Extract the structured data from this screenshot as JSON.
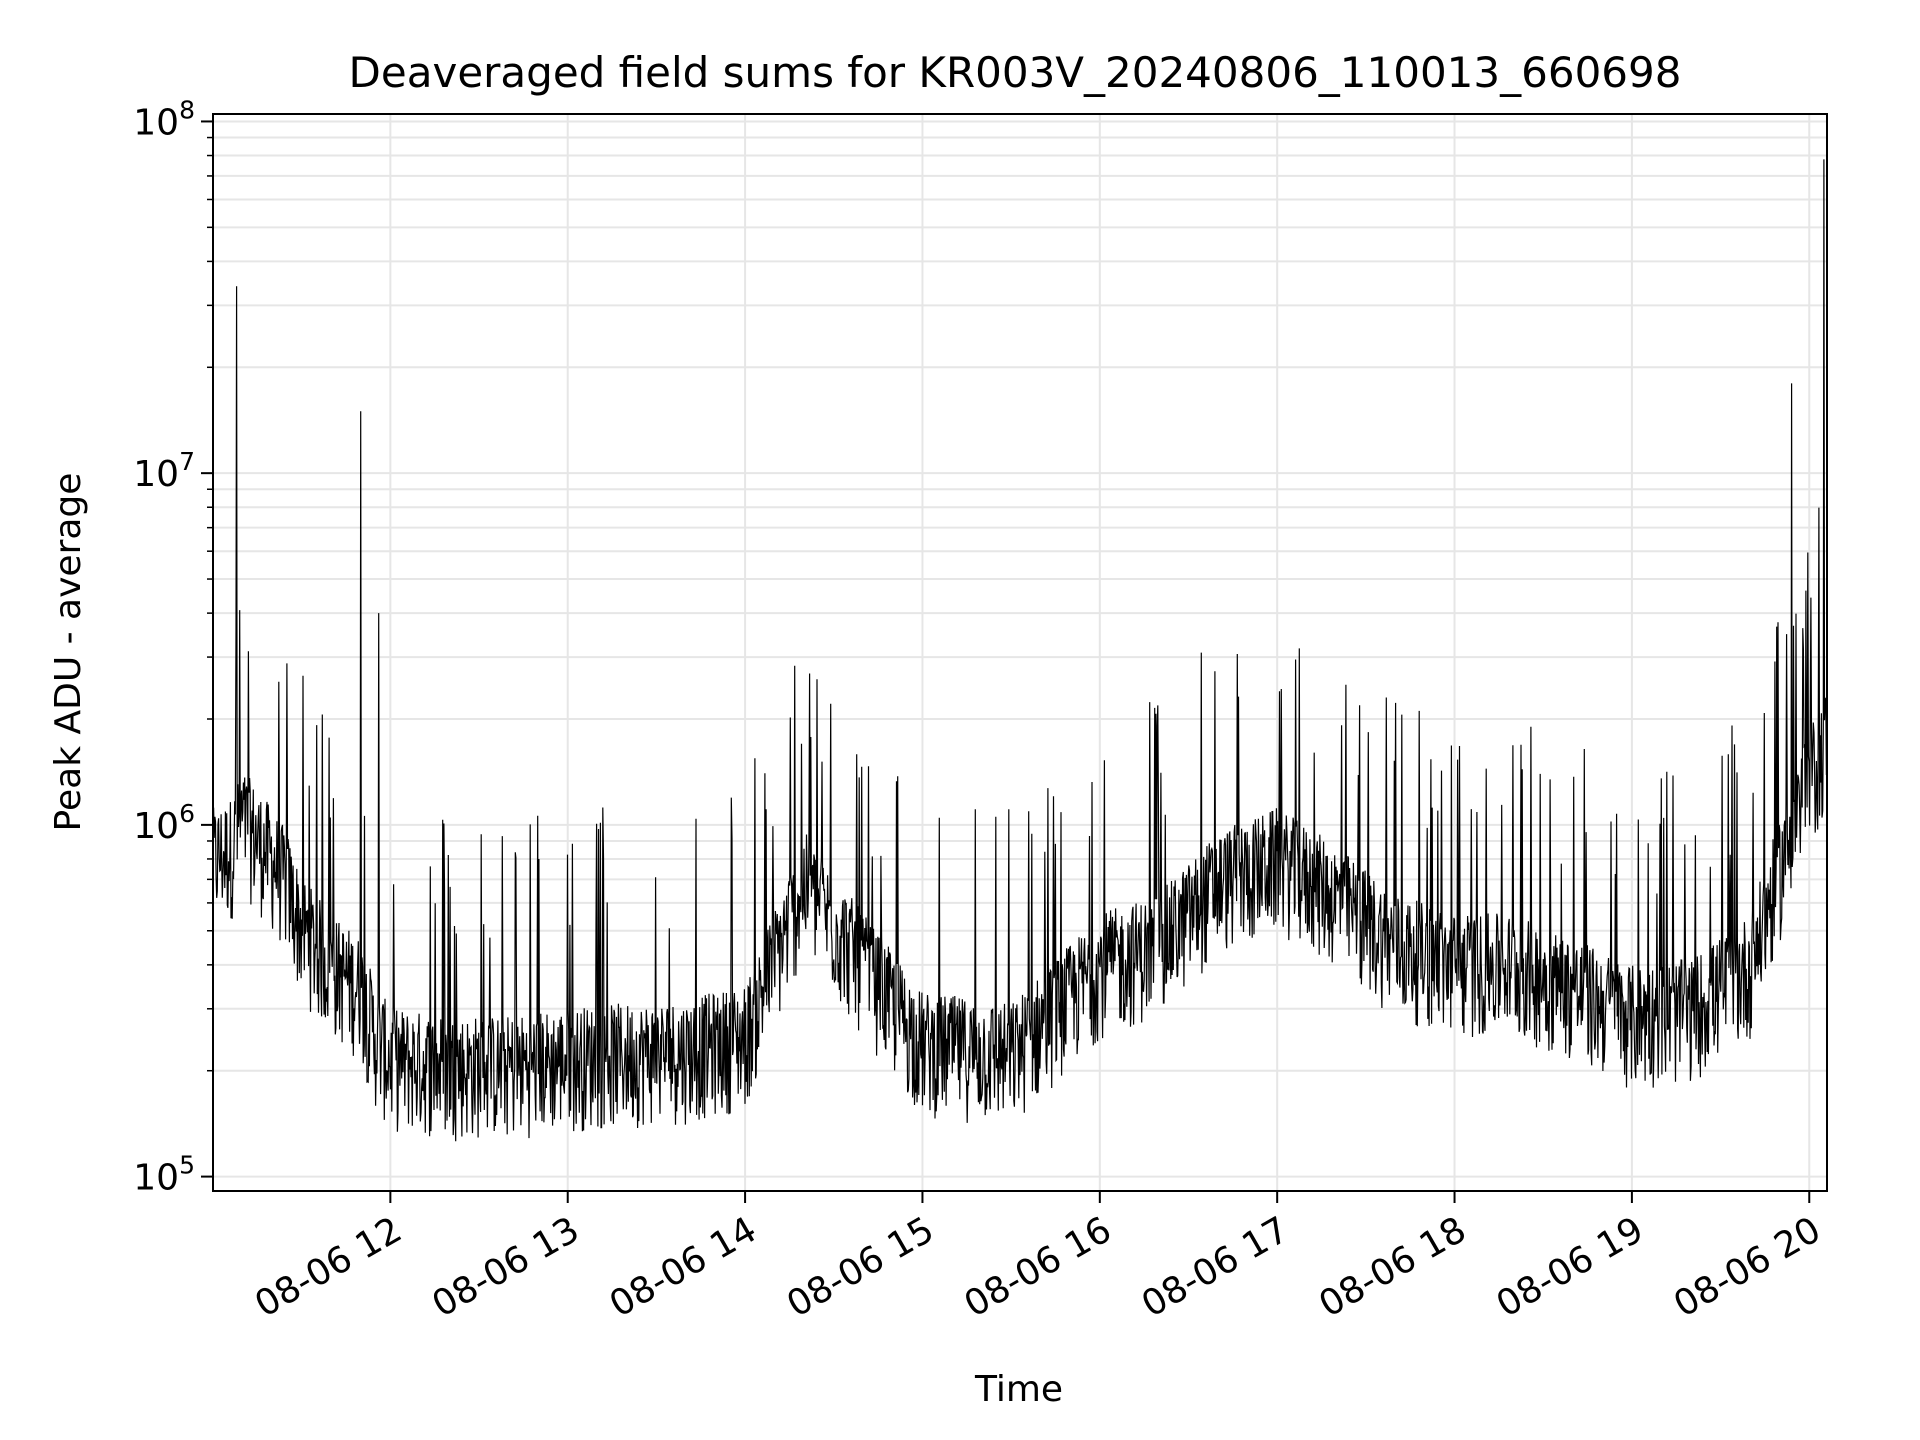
{
  "chart_data": {
    "type": "line",
    "title": "Deaveraged field sums for KR003V_20240806_110013_660698",
    "xlabel": "Time",
    "ylabel": "Peak ADU - average",
    "yscale": "log",
    "ylim": [
      91000,
      105000000
    ],
    "xlim": [
      "08-06 11:00",
      "08-06 20:06"
    ],
    "x_ticks": [
      "08-06 12",
      "08-06 13",
      "08-06 14",
      "08-06 15",
      "08-06 16",
      "08-06 17",
      "08-06 18",
      "08-06 19",
      "08-06 20"
    ],
    "y_ticks": [
      {
        "base": "10",
        "exp": "5",
        "value": 100000
      },
      {
        "base": "10",
        "exp": "6",
        "value": 1000000
      },
      {
        "base": "10",
        "exp": "7",
        "value": 10000000
      },
      {
        "base": "10",
        "exp": "8",
        "value": 100000000
      }
    ],
    "grid": true,
    "line_color": "#000000",
    "grid_color": "#e6e6e6",
    "series": [
      {
        "x": [
          "08-06 11:00",
          "08-06 11:06",
          "08-06 11:10",
          "08-06 11:15",
          "08-06 11:20",
          "08-06 11:25",
          "08-06 11:30",
          "08-06 11:40",
          "08-06 11:50",
          "08-06 11:55",
          "08-06 12:00",
          "08-06 12:20",
          "08-06 12:40",
          "08-06 13:00",
          "08-06 13:20",
          "08-06 13:40",
          "08-06 14:00",
          "08-06 14:20",
          "08-06 14:40",
          "08-06 15:00",
          "08-06 15:30",
          "08-06 15:45",
          "08-06 16:00",
          "08-06 16:20",
          "08-06 16:40",
          "08-06 17:00",
          "08-06 17:20",
          "08-06 17:40",
          "08-06 18:00",
          "08-06 18:20",
          "08-06 18:40",
          "08-06 19:00",
          "08-06 19:20",
          "08-06 19:40",
          "08-06 19:55",
          "08-06 20:05"
        ],
        "values": [
          700000,
          750000,
          900000,
          800000,
          700000,
          600000,
          450000,
          350000,
          300000,
          220000,
          190000,
          180000,
          180000,
          190000,
          195000,
          200000,
          220000,
          600000,
          350000,
          210000,
          195000,
          260000,
          350000,
          400000,
          600000,
          700000,
          550000,
          400000,
          350000,
          350000,
          300000,
          250000,
          260000,
          350000,
          900000,
          1500000
        ],
        "spikes": [
          {
            "x": "08-06 11:08",
            "value": 34000000
          },
          {
            "x": "08-06 11:50",
            "value": 15000000
          },
          {
            "x": "08-06 11:56",
            "value": 4000000
          },
          {
            "x": "08-06 14:19",
            "value": 1700000
          },
          {
            "x": "08-06 19:54",
            "value": 18000000
          },
          {
            "x": "08-06 20:05",
            "value": 78000000
          }
        ]
      }
    ]
  }
}
